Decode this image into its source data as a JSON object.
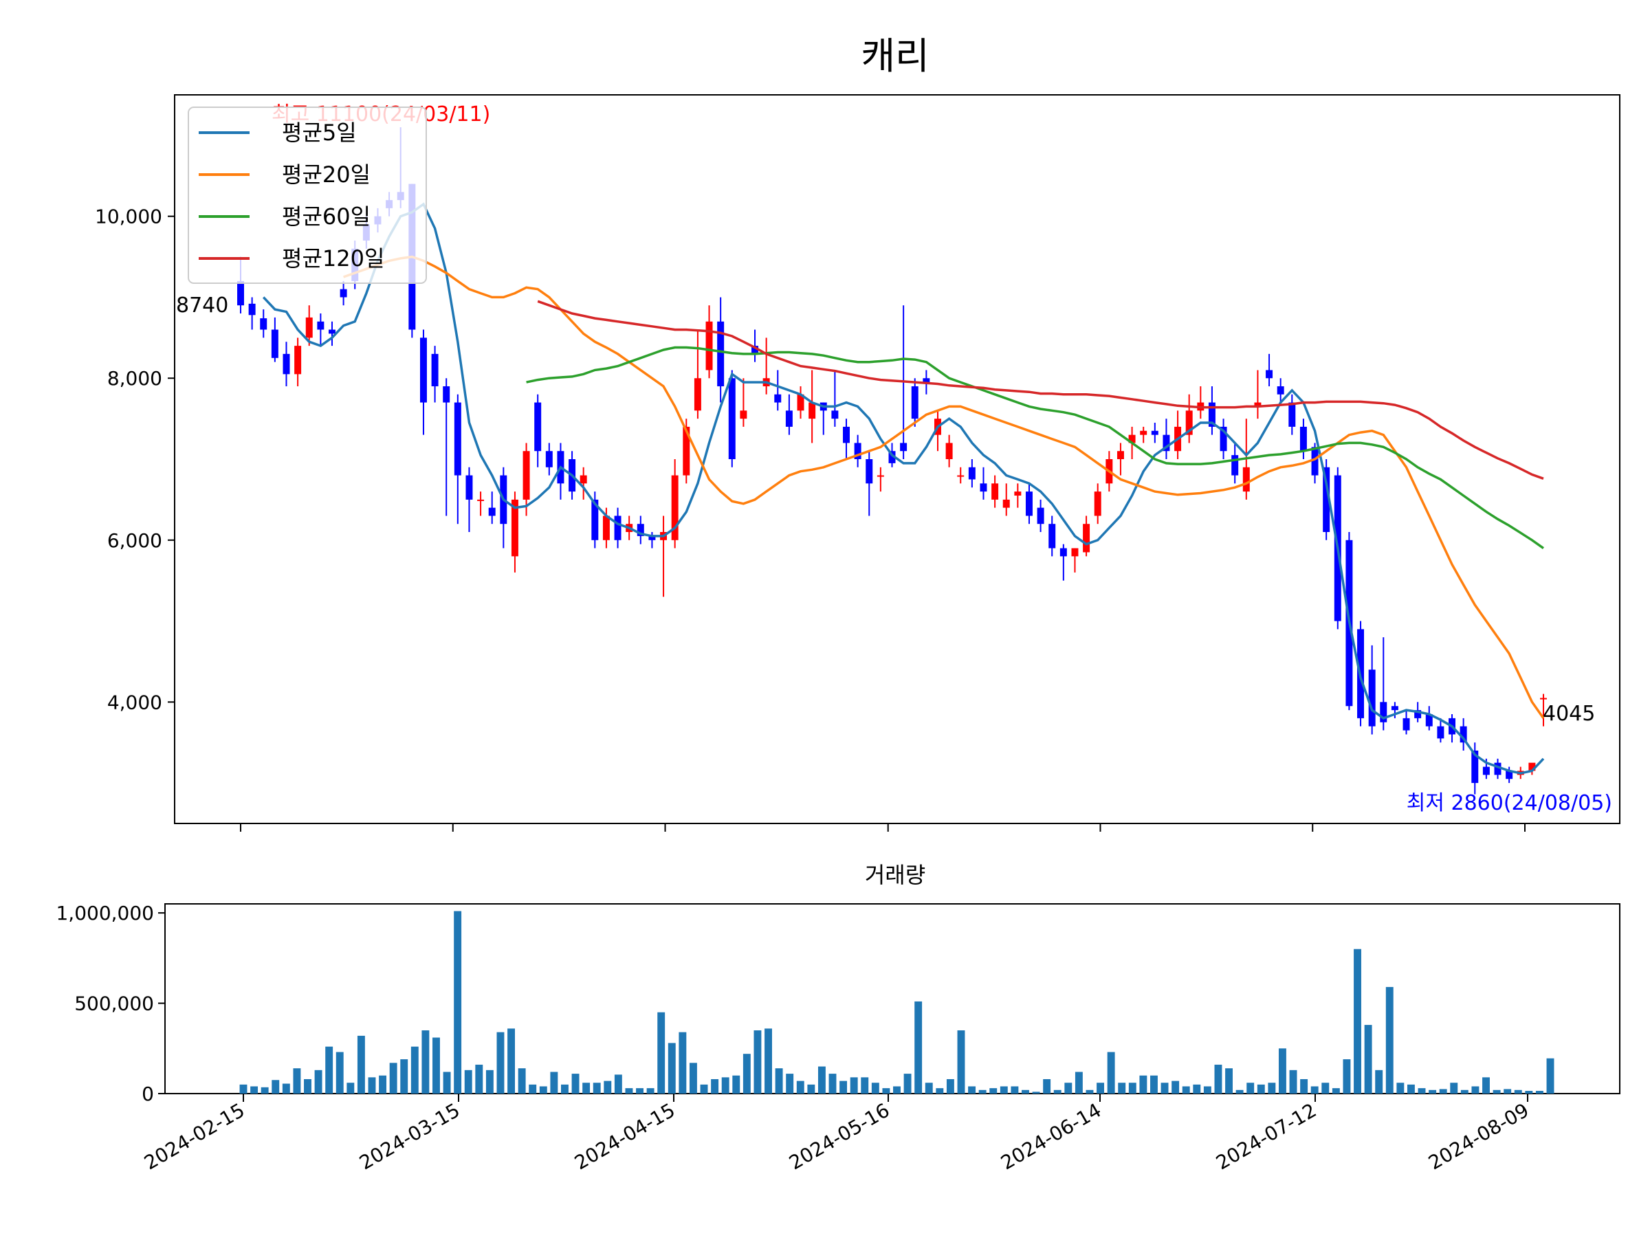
{
  "chart_data": [
    {
      "type": "candlestick",
      "title": "캐리",
      "ylabel": "",
      "xlabel": "",
      "ylim": [
        2500,
        11500
      ],
      "yticks": [
        4000,
        6000,
        8000,
        10000
      ],
      "ytick_labels": [
        "4,000",
        "6,000",
        "8,000",
        "10,000"
      ],
      "xticks": [
        "2024-02-15",
        "2024-03-15",
        "2024-04-15",
        "2024-05-16",
        "2024-06-14",
        "2024-07-12",
        "2024-08-09"
      ],
      "legend_position": "top-left",
      "up_color": "#ff0000",
      "down_color": "#0000ff",
      "series": [
        {
          "name": "평균5일",
          "color": "#1f77b4",
          "values": [
            9000,
            8850,
            8820,
            8600,
            8450,
            8400,
            8500,
            8650,
            8700,
            9050,
            9450,
            9750,
            10000,
            10050,
            10150,
            9850,
            9300,
            8450,
            7450,
            7050,
            6800,
            6500,
            6400,
            6420,
            6520,
            6650,
            6900,
            6800,
            6650,
            6450,
            6300,
            6200,
            6150,
            6080,
            6050,
            6050,
            6150,
            6350,
            6700,
            7200,
            7650,
            8050,
            7950,
            7950,
            7950,
            7900,
            7850,
            7800,
            7700,
            7650,
            7650,
            7700,
            7650,
            7500,
            7250,
            7050,
            6950,
            6950,
            7150,
            7400,
            7500,
            7400,
            7200,
            7050,
            6950,
            6800,
            6750,
            6700,
            6600,
            6450,
            6250,
            6050,
            5950,
            6000,
            6150,
            6300,
            6550,
            6850,
            7050,
            7150,
            7250,
            7350,
            7450,
            7450,
            7350,
            7200,
            7050,
            7200,
            7450,
            7700,
            7850,
            7700,
            7350,
            6700,
            5900,
            5000,
            4300,
            3900,
            3800,
            3850,
            3900,
            3880,
            3850,
            3780,
            3700,
            3550,
            3350,
            3250,
            3200,
            3150,
            3120,
            3150,
            3300
          ]
        },
        {
          "name": "평균20일",
          "color": "#ff7f0e",
          "values": [
            9250,
            9300,
            9350,
            9400,
            9450,
            9480,
            9500,
            9450,
            9380,
            9300,
            9200,
            9100,
            9050,
            9000,
            9000,
            9050,
            9120,
            9100,
            9000,
            8850,
            8700,
            8550,
            8450,
            8380,
            8300,
            8200,
            8100,
            8000,
            7900,
            7650,
            7350,
            7050,
            6750,
            6600,
            6480,
            6450,
            6500,
            6600,
            6700,
            6800,
            6850,
            6870,
            6900,
            6950,
            7000,
            7050,
            7100,
            7150,
            7250,
            7350,
            7450,
            7550,
            7600,
            7650,
            7650,
            7600,
            7550,
            7500,
            7450,
            7400,
            7350,
            7300,
            7250,
            7200,
            7150,
            7050,
            6950,
            6850,
            6750,
            6700,
            6650,
            6600,
            6580,
            6560,
            6570,
            6580,
            6600,
            6620,
            6650,
            6700,
            6780,
            6850,
            6900,
            6920,
            6950,
            7000,
            7100,
            7200,
            7300,
            7330,
            7350,
            7300,
            7100,
            6900,
            6600,
            6300,
            6000,
            5700,
            5450,
            5200,
            5000,
            4800,
            4600,
            4300,
            4000,
            3800
          ]
        },
        {
          "name": "평균60일",
          "color": "#2ca02c",
          "values": [
            7950,
            7980,
            8000,
            8010,
            8020,
            8050,
            8100,
            8120,
            8150,
            8200,
            8250,
            8300,
            8350,
            8380,
            8380,
            8370,
            8350,
            8330,
            8310,
            8300,
            8300,
            8310,
            8320,
            8320,
            8310,
            8300,
            8280,
            8250,
            8220,
            8200,
            8200,
            8210,
            8220,
            8240,
            8230,
            8200,
            8100,
            8000,
            7950,
            7900,
            7850,
            7800,
            7750,
            7700,
            7650,
            7620,
            7600,
            7580,
            7550,
            7500,
            7450,
            7400,
            7300,
            7200,
            7100,
            7000,
            6950,
            6940,
            6940,
            6940,
            6950,
            6970,
            6990,
            7010,
            7030,
            7050,
            7060,
            7080,
            7100,
            7130,
            7160,
            7190,
            7200,
            7200,
            7180,
            7150,
            7080,
            7000,
            6900,
            6820,
            6750,
            6650,
            6550,
            6450,
            6350,
            6260,
            6180,
            6090,
            6000,
            5900
          ]
        },
        {
          "name": "평균120일",
          "color": "#d62728",
          "values": [
            8950,
            8900,
            8850,
            8800,
            8770,
            8740,
            8720,
            8700,
            8680,
            8660,
            8640,
            8620,
            8600,
            8600,
            8590,
            8580,
            8560,
            8520,
            8450,
            8380,
            8300,
            8250,
            8200,
            8150,
            8130,
            8110,
            8090,
            8060,
            8030,
            8000,
            7980,
            7970,
            7960,
            7950,
            7940,
            7930,
            7910,
            7900,
            7890,
            7880,
            7860,
            7850,
            7840,
            7830,
            7810,
            7810,
            7800,
            7800,
            7800,
            7790,
            7780,
            7760,
            7740,
            7720,
            7700,
            7680,
            7660,
            7650,
            7640,
            7640,
            7640,
            7640,
            7650,
            7650,
            7660,
            7670,
            7680,
            7700,
            7700,
            7710,
            7710,
            7710,
            7710,
            7700,
            7690,
            7670,
            7630,
            7580,
            7500,
            7400,
            7320,
            7230,
            7150,
            7080,
            7010,
            6950,
            6880,
            6810,
            6760
          ]
        }
      ],
      "candles": {
        "open": [
          9200,
          8920,
          8740,
          8600,
          8300,
          8050,
          8500,
          8700,
          8600,
          9100,
          9600,
          9900,
          10000,
          10200,
          10300,
          10400,
          8500,
          8300,
          7900,
          7700,
          6800,
          6500,
          6400,
          6800,
          5800,
          6500,
          7700,
          7100,
          7100,
          7000,
          6700,
          6500,
          6000,
          6300,
          6100,
          6200,
          6050,
          6000,
          6000,
          6800,
          7600,
          8100,
          8700,
          8000,
          7500,
          8400,
          7900,
          7800,
          7600,
          7600,
          7500,
          7700,
          7600,
          7400,
          7200,
          7000,
          6800,
          7100,
          7200,
          7900,
          8000,
          7300,
          7000,
          6800,
          6900,
          6700,
          6500,
          6400,
          6550,
          6600,
          6400,
          6200,
          5900,
          5800,
          5850,
          6300,
          6700,
          7000,
          7200,
          7300,
          7350,
          7300,
          7100,
          7300,
          7600,
          7700,
          7400,
          7050,
          6600,
          7650,
          8100,
          7900,
          7700,
          7400,
          7150,
          6900,
          6800,
          6000,
          4900,
          4400,
          4000,
          3950,
          3800,
          3900,
          3850,
          3700,
          3800,
          3700,
          3400,
          3200,
          3250,
          3150,
          3100,
          3150,
          4050
        ],
        "close": [
          8900,
          8780,
          8600,
          8250,
          8050,
          8400,
          8750,
          8600,
          8550,
          9000,
          9200,
          9700,
          9900,
          10100,
          10200,
          8600,
          7700,
          7900,
          7700,
          6800,
          6500,
          6500,
          6300,
          6200,
          6500,
          7100,
          7100,
          6900,
          6700,
          6600,
          6800,
          6000,
          6300,
          6000,
          6200,
          6050,
          6000,
          6100,
          6800,
          7400,
          8000,
          8700,
          7900,
          7000,
          7600,
          8300,
          8000,
          7700,
          7400,
          7800,
          7700,
          7600,
          7500,
          7200,
          7000,
          6700,
          6800,
          6950,
          7100,
          7500,
          7950,
          7500,
          7200,
          6800,
          6750,
          6600,
          6700,
          6500,
          6600,
          6300,
          6200,
          5900,
          5800,
          5900,
          6200,
          6600,
          7000,
          7100,
          7300,
          7350,
          7300,
          7100,
          7400,
          7600,
          7700,
          7400,
          7100,
          6800,
          6900,
          7700,
          8000,
          7800,
          7400,
          7100,
          6800,
          6100,
          5000,
          3950,
          3800,
          3700,
          3750,
          3900,
          3650,
          3800,
          3700,
          3550,
          3600,
          3500,
          3000,
          3100,
          3100,
          3050,
          3150,
          3250,
          4050
        ],
        "high": [
          9500,
          9000,
          8850,
          8750,
          8450,
          8500,
          8900,
          8800,
          8700,
          9200,
          9700,
          10000,
          10100,
          10300,
          11100,
          10400,
          8600,
          8400,
          8000,
          7800,
          6900,
          6600,
          6600,
          6900,
          6600,
          7200,
          7800,
          7200,
          7200,
          7100,
          6900,
          6600,
          6400,
          6400,
          6300,
          6300,
          6100,
          6300,
          7000,
          7500,
          8600,
          8900,
          9000,
          8100,
          8000,
          8600,
          8500,
          8100,
          7800,
          7900,
          8100,
          7700,
          8100,
          7500,
          7300,
          7100,
          6900,
          7200,
          8900,
          8000,
          8100,
          7600,
          7300,
          6900,
          7000,
          6900,
          6800,
          6700,
          6700,
          6700,
          6500,
          6300,
          5950,
          5900,
          6300,
          6700,
          7100,
          7200,
          7400,
          7400,
          7450,
          7500,
          7600,
          7800,
          7900,
          7900,
          7500,
          7200,
          7500,
          8100,
          8300,
          8000,
          7800,
          7500,
          7200,
          7000,
          6900,
          6100,
          5000,
          4700,
          4800,
          4000,
          3900,
          4000,
          3950,
          3800,
          3850,
          3800,
          3500,
          3300,
          3300,
          3200,
          3200,
          3200,
          4100
        ],
        "low": [
          8800,
          8600,
          8500,
          8200,
          7900,
          7900,
          8400,
          8400,
          8400,
          8900,
          9100,
          9600,
          9800,
          10000,
          10100,
          8500,
          7300,
          7700,
          6300,
          6200,
          6100,
          6300,
          6200,
          5900,
          5600,
          6300,
          6900,
          6800,
          6500,
          6500,
          6500,
          5900,
          5900,
          5900,
          6000,
          5950,
          5900,
          5300,
          5900,
          6700,
          7500,
          8000,
          7700,
          6900,
          7400,
          8200,
          7800,
          7600,
          7300,
          7500,
          7200,
          7300,
          7400,
          7000,
          6900,
          6300,
          6600,
          6900,
          7000,
          7400,
          7800,
          7100,
          6900,
          6700,
          6650,
          6500,
          6400,
          6300,
          6400,
          6200,
          6100,
          5800,
          5500,
          5600,
          5800,
          6200,
          6600,
          6800,
          7000,
          7200,
          7200,
          7000,
          7000,
          7200,
          7500,
          7300,
          7000,
          6700,
          6500,
          7500,
          7900,
          7700,
          7300,
          7000,
          6700,
          6000,
          4900,
          3900,
          3700,
          3600,
          3650,
          3800,
          3600,
          3750,
          3650,
          3500,
          3500,
          3400,
          2860,
          3050,
          3050,
          3000,
          3050,
          3100,
          3700
        ],
        "high_annotation": "최고 11100(24/03/11)",
        "low_annotation": "최저 2860(24/08/05)",
        "first_value_label": "8740",
        "last_value_label": "4045"
      }
    },
    {
      "type": "bar",
      "title": "거래량",
      "ylim": [
        0,
        1050000
      ],
      "yticks": [
        0,
        500000,
        1000000
      ],
      "ytick_labels": [
        "0",
        "500,000",
        "1,000,000"
      ],
      "color": "#1f77b4",
      "values": [
        50000,
        40000,
        35000,
        75000,
        55000,
        140000,
        80000,
        130000,
        260000,
        230000,
        60000,
        320000,
        90000,
        100000,
        170000,
        190000,
        260000,
        350000,
        310000,
        120000,
        1010000,
        130000,
        160000,
        130000,
        340000,
        360000,
        140000,
        50000,
        40000,
        120000,
        50000,
        110000,
        60000,
        60000,
        70000,
        105000,
        30000,
        30000,
        30000,
        450000,
        280000,
        340000,
        170000,
        50000,
        80000,
        90000,
        100000,
        220000,
        350000,
        360000,
        140000,
        110000,
        70000,
        50000,
        150000,
        110000,
        70000,
        90000,
        90000,
        60000,
        30000,
        40000,
        110000,
        510000,
        60000,
        30000,
        80000,
        350000,
        40000,
        20000,
        30000,
        40000,
        40000,
        20000,
        10000,
        80000,
        20000,
        60000,
        120000,
        20000,
        60000,
        230000,
        60000,
        60000,
        100000,
        100000,
        60000,
        70000,
        40000,
        50000,
        40000,
        160000,
        140000,
        20000,
        60000,
        50000,
        60000,
        250000,
        130000,
        80000,
        40000,
        60000,
        30000,
        190000,
        800000,
        380000,
        130000,
        590000,
        60000,
        50000,
        30000,
        20000,
        25000,
        60000,
        20000,
        40000,
        90000,
        20000,
        25000,
        20000,
        15000,
        15000,
        195000
      ]
    }
  ]
}
